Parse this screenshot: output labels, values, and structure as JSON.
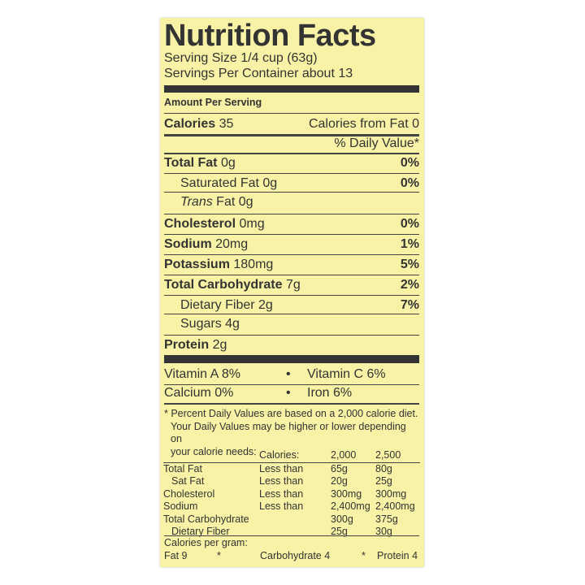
{
  "title": "Nutrition Facts",
  "serving_size": "Serving Size 1/4 cup (63g)",
  "servings_per_container": "Servings Per Container about 13",
  "amount_per_serving": "Amount Per Serving",
  "calories": {
    "label": "Calories",
    "value": "35",
    "from_fat": "Calories from Fat 0"
  },
  "daily_value_header": "% Daily Value*",
  "nutrients": [
    {
      "label": "Total Fat",
      "amount": "0g",
      "dv": "0%"
    },
    {
      "label": "Saturated Fat",
      "amount": "0g",
      "dv": "0%"
    },
    {
      "label": "Trans",
      "amount": "Fat 0g",
      "dv": ""
    },
    {
      "label": "Cholesterol",
      "amount": "0mg",
      "dv": "0%"
    },
    {
      "label": "Sodium",
      "amount": "20mg",
      "dv": "1%"
    },
    {
      "label": "Potassium",
      "amount": "180mg",
      "dv": "5%"
    },
    {
      "label": "Total Carbohydrate",
      "amount": "7g",
      "dv": "2%"
    },
    {
      "label": "Dietary Fiber",
      "amount": "2g",
      "dv": "7%"
    },
    {
      "label": "Sugars",
      "amount": "4g",
      "dv": ""
    },
    {
      "label": "Protein",
      "amount": "2g",
      "dv": ""
    }
  ],
  "vitamins": [
    {
      "left": "Vitamin A 8%",
      "right": "Vitamin C  6%"
    },
    {
      "left": "Calcium  0%",
      "right": "Iron 6%"
    }
  ],
  "bullet": "•",
  "footnote": [
    "* Percent Daily Values are based on a 2,000 calorie diet.",
    "Your Daily Values may be higher or lower depending on",
    "your calorie needs:"
  ],
  "dv_table": {
    "header": [
      "",
      "Calories:",
      "2,000",
      "2,500"
    ],
    "rows": [
      [
        "Total Fat",
        "Less than",
        "65g",
        "80g"
      ],
      [
        "Sat Fat",
        "Less than",
        "20g",
        "25g"
      ],
      [
        "Cholesterol",
        "Less than",
        "300mg",
        "300mg"
      ],
      [
        "Sodium",
        "Less than",
        "2,400mg",
        "2,400mg"
      ],
      [
        "Total Carbohydrate",
        "",
        "300g",
        "375g"
      ],
      [
        "Dietary Fiber",
        "",
        "25g",
        "30g"
      ]
    ]
  },
  "calories_per_gram": {
    "label": "Calories per gram:",
    "fat": "Fat 9",
    "carb": "Carbohydrate 4",
    "protein": "Protein 4",
    "sep": "*"
  },
  "colors": {
    "label_bg": "#f8f2a6",
    "text": "#333333"
  }
}
